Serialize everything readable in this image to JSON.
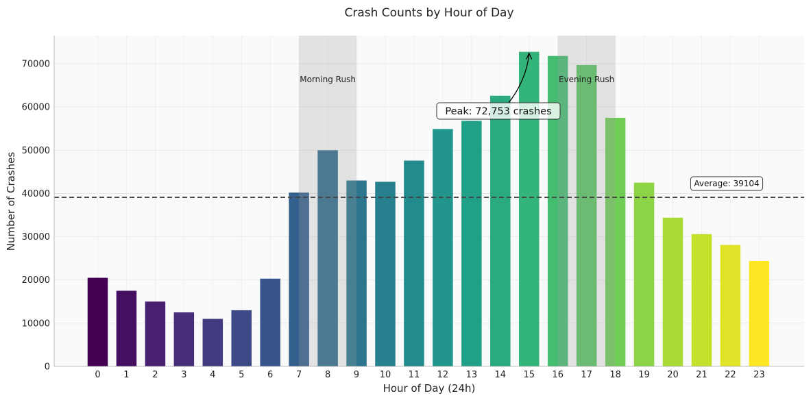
{
  "chart_data": {
    "type": "bar",
    "title": "Crash Counts by Hour of Day",
    "xlabel": "Hour of Day (24h)",
    "ylabel": "Number of Crashes",
    "categories": [
      "0",
      "1",
      "2",
      "3",
      "4",
      "5",
      "6",
      "7",
      "8",
      "9",
      "10",
      "11",
      "12",
      "13",
      "14",
      "15",
      "16",
      "17",
      "18",
      "19",
      "20",
      "21",
      "22",
      "23"
    ],
    "values": [
      20500,
      17500,
      15000,
      12500,
      11000,
      13000,
      20300,
      40200,
      50000,
      43000,
      42700,
      47600,
      54900,
      56800,
      62600,
      72753,
      71800,
      69700,
      57500,
      42500,
      34400,
      30600,
      28100,
      24400
    ],
    "ylim": [
      0,
      76500
    ],
    "yticks": [
      "0",
      "10000",
      "20000",
      "30000",
      "40000",
      "50000",
      "60000",
      "70000"
    ],
    "grid": true,
    "colormap": "viridis",
    "average": {
      "value": 39104,
      "label": "Average: 39104"
    },
    "peak_annotation": {
      "text": "Peak: 72,753 crashes",
      "hour": 15,
      "value": 72753
    },
    "shaded_regions": [
      {
        "label": "Morning Rush",
        "start": 7,
        "end": 9
      },
      {
        "label": "Evening Rush",
        "start": 16,
        "end": 18
      }
    ]
  }
}
